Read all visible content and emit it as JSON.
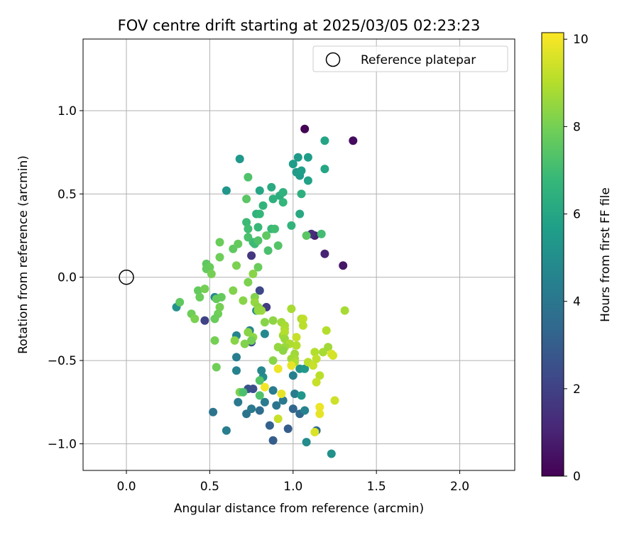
{
  "chart_data": {
    "type": "scatter",
    "title": "FOV centre drift starting at 2025/03/05 02:23:23",
    "xlabel": "Angular distance from reference (arcmin)",
    "ylabel": "Rotation from reference (arcmin)",
    "xlim": [
      -0.26,
      2.33
    ],
    "ylim": [
      -1.16,
      1.43
    ],
    "xticks": [
      0.0,
      0.5,
      1.0,
      1.5,
      2.0
    ],
    "xtick_labels": [
      "0.0",
      "0.5",
      "1.0",
      "1.5",
      "2.0"
    ],
    "yticks": [
      -1.0,
      -0.5,
      0.0,
      0.5,
      1.0
    ],
    "ytick_labels": [
      "−1.0",
      "−0.5",
      "0.0",
      "0.5",
      "1.0"
    ],
    "grid": true,
    "legend": {
      "placement": "top-right",
      "entries": [
        "Reference platepar"
      ]
    },
    "reference_point": {
      "x": 0.0,
      "y": 0.0,
      "label": "Reference platepar",
      "marker": "open-circle"
    },
    "colorbar": {
      "label": "Hours from first FF file",
      "colormap": "viridis",
      "range": [
        0,
        10.15
      ],
      "ticks": [
        0,
        2,
        4,
        6,
        8,
        10
      ],
      "tick_labels": [
        "0",
        "2",
        "4",
        "6",
        "8",
        "10"
      ]
    },
    "colormap_stops": [
      "#440154",
      "#482878",
      "#3e4989",
      "#31688e",
      "#26828e",
      "#1f9e89",
      "#35b779",
      "#6ece58",
      "#b5de2b",
      "#fde725"
    ],
    "series": [
      {
        "note_fields": [
          "x",
          "y",
          "hours"
        ],
        "points": [
          [
            1.07,
            0.89,
            0.1
          ],
          [
            1.36,
            0.82,
            0.3
          ],
          [
            1.3,
            0.07,
            0.6
          ],
          [
            1.19,
            0.14,
            1.0
          ],
          [
            1.13,
            0.25,
            0.9
          ],
          [
            1.11,
            0.26,
            1.3
          ],
          [
            0.75,
            0.13,
            1.6
          ],
          [
            0.8,
            -0.08,
            2.2
          ],
          [
            0.84,
            -0.18,
            1.8
          ],
          [
            0.47,
            -0.26,
            2.0
          ],
          [
            0.75,
            -0.39,
            2.4
          ],
          [
            0.73,
            -0.67,
            2.6
          ],
          [
            0.76,
            -0.67,
            2.5
          ],
          [
            0.88,
            -0.98,
            3.0
          ],
          [
            0.86,
            -0.89,
            3.2
          ],
          [
            0.97,
            -0.91,
            3.0
          ],
          [
            1.0,
            -0.79,
            3.3
          ],
          [
            1.04,
            -0.82,
            3.4
          ],
          [
            1.14,
            -0.92,
            3.5
          ],
          [
            0.52,
            -0.81,
            3.9
          ],
          [
            0.6,
            -0.92,
            4.3
          ],
          [
            0.67,
            -0.75,
            4.1
          ],
          [
            0.72,
            -0.82,
            3.9
          ],
          [
            0.75,
            -0.79,
            4.1
          ],
          [
            0.8,
            -0.8,
            3.6
          ],
          [
            0.83,
            -0.75,
            4.2
          ],
          [
            0.88,
            -0.68,
            4.2
          ],
          [
            0.9,
            -0.77,
            4.0
          ],
          [
            0.94,
            -0.74,
            4.1
          ],
          [
            1.0,
            -0.59,
            4.4
          ],
          [
            1.01,
            -0.7,
            4.3
          ],
          [
            1.07,
            -0.8,
            4.5
          ],
          [
            1.08,
            -0.99,
            4.9
          ],
          [
            1.23,
            -1.06,
            5.1
          ],
          [
            1.04,
            -0.55,
            5.2
          ],
          [
            1.07,
            -0.55,
            5.4
          ],
          [
            1.05,
            -0.71,
            5.3
          ],
          [
            0.82,
            -0.6,
            5.0
          ],
          [
            0.81,
            -0.56,
            4.7
          ],
          [
            0.78,
            -0.2,
            5.0
          ],
          [
            0.83,
            -0.34,
            4.8
          ],
          [
            0.74,
            -0.32,
            4.5
          ],
          [
            0.66,
            -0.35,
            4.6
          ],
          [
            0.66,
            -0.48,
            4.3
          ],
          [
            0.66,
            -0.56,
            4.5
          ],
          [
            0.53,
            -0.12,
            4.7
          ],
          [
            0.3,
            -0.18,
            5.2
          ],
          [
            0.6,
            0.52,
            5.3
          ],
          [
            0.68,
            0.71,
            5.4
          ],
          [
            1.0,
            0.68,
            5.6
          ],
          [
            1.03,
            0.72,
            5.5
          ],
          [
            1.09,
            0.72,
            5.6
          ],
          [
            1.02,
            0.63,
            5.5
          ],
          [
            1.04,
            0.61,
            5.5
          ],
          [
            1.05,
            0.64,
            5.7
          ],
          [
            1.09,
            0.58,
            5.8
          ],
          [
            1.19,
            0.82,
            5.9
          ],
          [
            1.19,
            0.65,
            6.0
          ],
          [
            1.04,
            0.38,
            6.1
          ],
          [
            1.05,
            0.5,
            6.4
          ],
          [
            0.99,
            0.31,
            6.6
          ],
          [
            0.8,
            0.52,
            6.0
          ],
          [
            0.87,
            0.54,
            6.2
          ],
          [
            0.92,
            0.49,
            6.3
          ],
          [
            0.94,
            0.51,
            6.5
          ],
          [
            0.94,
            0.45,
            6.7
          ],
          [
            0.88,
            0.47,
            6.4
          ],
          [
            0.82,
            0.43,
            6.6
          ],
          [
            0.78,
            0.38,
            6.5
          ],
          [
            0.8,
            0.38,
            6.7
          ],
          [
            0.72,
            0.33,
            6.9
          ],
          [
            0.73,
            0.29,
            7.0
          ],
          [
            0.79,
            0.3,
            6.8
          ],
          [
            0.73,
            0.24,
            7.2
          ],
          [
            0.76,
            0.21,
            7.0
          ],
          [
            0.77,
            0.2,
            6.9
          ],
          [
            0.79,
            0.22,
            7.3
          ],
          [
            0.87,
            0.29,
            6.8
          ],
          [
            0.89,
            0.29,
            7.0
          ],
          [
            0.91,
            0.19,
            7.4
          ],
          [
            0.85,
            0.16,
            7.2
          ],
          [
            0.84,
            0.25,
            7.6
          ],
          [
            1.08,
            0.25,
            7.5
          ],
          [
            1.17,
            0.26,
            7.0
          ],
          [
            0.73,
            0.6,
            7.3
          ],
          [
            0.72,
            0.47,
            7.5
          ],
          [
            0.64,
            0.17,
            7.6
          ],
          [
            0.67,
            0.2,
            7.7
          ],
          [
            0.56,
            0.21,
            7.8
          ],
          [
            0.56,
            0.12,
            7.9
          ],
          [
            0.48,
            0.08,
            7.6
          ],
          [
            0.5,
            0.06,
            7.8
          ],
          [
            0.48,
            0.05,
            7.7
          ],
          [
            0.51,
            0.02,
            8.0
          ],
          [
            0.66,
            0.07,
            8.1
          ],
          [
            0.73,
            -0.03,
            8.1
          ],
          [
            0.79,
            0.06,
            7.8
          ],
          [
            0.76,
            0.02,
            8.3
          ],
          [
            0.43,
            -0.08,
            7.7
          ],
          [
            0.44,
            -0.12,
            7.8
          ],
          [
            0.47,
            -0.07,
            8.0
          ],
          [
            0.39,
            -0.22,
            7.9
          ],
          [
            0.41,
            -0.25,
            8.1
          ],
          [
            0.55,
            -0.22,
            7.9
          ],
          [
            0.56,
            -0.18,
            8.0
          ],
          [
            0.54,
            -0.13,
            7.7
          ],
          [
            0.53,
            -0.25,
            7.8
          ],
          [
            0.32,
            -0.15,
            7.6
          ],
          [
            0.64,
            -0.08,
            8.2
          ],
          [
            0.7,
            -0.14,
            8.3
          ],
          [
            0.77,
            -0.12,
            8.2
          ],
          [
            0.77,
            -0.15,
            8.5
          ],
          [
            0.79,
            -0.18,
            8.4
          ],
          [
            0.81,
            -0.2,
            8.6
          ],
          [
            0.79,
            -0.2,
            8.5
          ],
          [
            0.83,
            -0.27,
            8.3
          ],
          [
            0.88,
            -0.26,
            8.4
          ],
          [
            0.93,
            -0.27,
            8.7
          ],
          [
            0.95,
            -0.29,
            8.8
          ],
          [
            0.95,
            -0.31,
            8.9
          ],
          [
            0.94,
            -0.35,
            8.7
          ],
          [
            0.95,
            -0.33,
            9.0
          ],
          [
            0.95,
            -0.37,
            8.6
          ],
          [
            0.99,
            -0.19,
            8.8
          ],
          [
            1.05,
            -0.25,
            8.9
          ],
          [
            1.06,
            -0.25,
            9.2
          ],
          [
            1.06,
            -0.29,
            9.1
          ],
          [
            1.02,
            -0.36,
            9.3
          ],
          [
            1.02,
            -0.41,
            9.0
          ],
          [
            0.98,
            -0.4,
            8.9
          ],
          [
            0.91,
            -0.42,
            8.5
          ],
          [
            0.95,
            -0.42,
            8.6
          ],
          [
            0.94,
            -0.44,
            8.4
          ],
          [
            1.01,
            -0.46,
            8.7
          ],
          [
            1.01,
            -0.49,
            8.8
          ],
          [
            0.99,
            -0.49,
            8.7
          ],
          [
            1.01,
            -0.51,
            8.9
          ],
          [
            1.09,
            -0.51,
            9.1
          ],
          [
            1.12,
            -0.53,
            9.3
          ],
          [
            1.13,
            -0.45,
            9.0
          ],
          [
            1.14,
            -0.49,
            9.2
          ],
          [
            1.16,
            -0.59,
            9.1
          ],
          [
            1.14,
            -0.63,
            9.3
          ],
          [
            1.18,
            -0.45,
            8.8
          ],
          [
            1.21,
            -0.42,
            8.7
          ],
          [
            1.23,
            -0.46,
            9.6
          ],
          [
            1.24,
            -0.47,
            9.5
          ],
          [
            1.2,
            -0.32,
            9.0
          ],
          [
            1.31,
            -0.2,
            8.8
          ],
          [
            1.25,
            -0.74,
            9.4
          ],
          [
            1.16,
            -0.78,
            9.9
          ],
          [
            1.16,
            -0.82,
            9.8
          ],
          [
            1.13,
            -0.93,
            9.6
          ],
          [
            0.88,
            -0.5,
            8.3
          ],
          [
            0.91,
            -0.55,
            9.9
          ],
          [
            0.99,
            -0.53,
            9.8
          ],
          [
            0.93,
            -0.7,
            9.8
          ],
          [
            0.83,
            -0.66,
            10.0
          ],
          [
            0.91,
            -0.85,
            9.3
          ],
          [
            0.68,
            -0.69,
            8.1
          ],
          [
            0.73,
            -0.33,
            8.3
          ],
          [
            0.76,
            -0.36,
            8.4
          ],
          [
            0.75,
            -0.38,
            8.0
          ],
          [
            0.71,
            -0.4,
            8.2
          ],
          [
            0.65,
            -0.38,
            8.3
          ],
          [
            0.53,
            -0.38,
            8.0
          ],
          [
            0.54,
            -0.54,
            7.9
          ],
          [
            0.8,
            -0.62,
            7.4
          ],
          [
            0.8,
            -0.71,
            7.3
          ],
          [
            0.7,
            -0.69,
            7.2
          ],
          [
            0.57,
            -0.12,
            7.7
          ]
        ]
      }
    ]
  }
}
